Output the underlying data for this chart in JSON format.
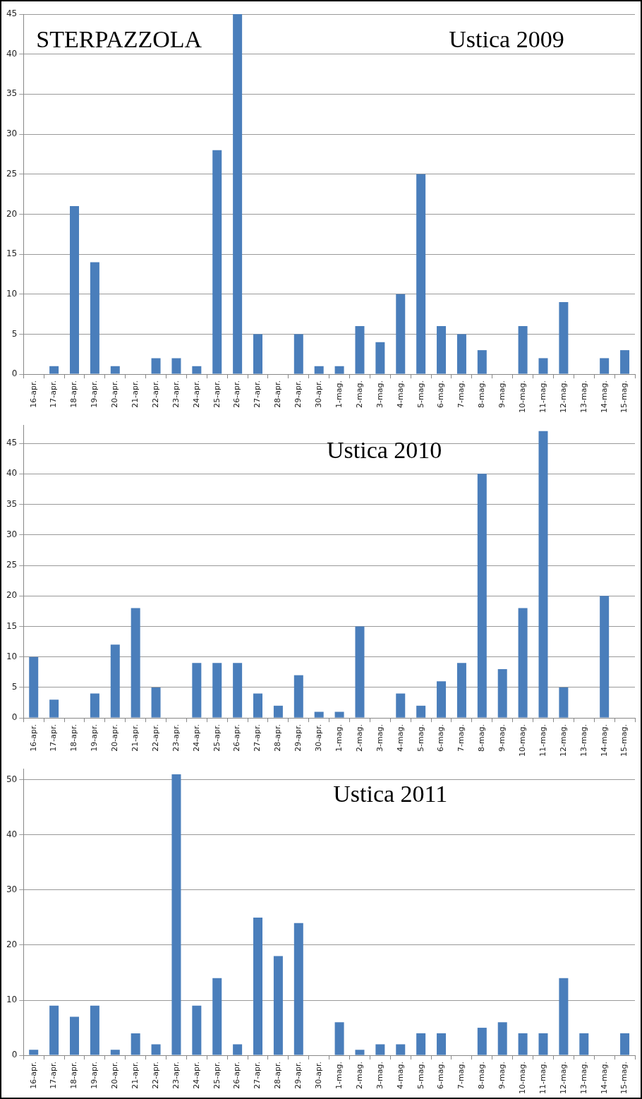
{
  "chart_data": [
    {
      "type": "bar",
      "title": "Ustica 2009",
      "annotations": [
        "STERPAZZOLA"
      ],
      "categories": [
        "16-apr.",
        "17-apr.",
        "18-apr.",
        "19-apr.",
        "20-apr.",
        "21-apr.",
        "22-apr.",
        "23-apr.",
        "24-apr.",
        "25-apr.",
        "26-apr.",
        "27-apr.",
        "28-apr.",
        "29-apr.",
        "30-apr.",
        "1-mag.",
        "2-mag.",
        "3-mag.",
        "4-mag.",
        "5-mag.",
        "6-mag.",
        "7-mag.",
        "8-mag.",
        "9-mag.",
        "10-mag.",
        "11-mag.",
        "12-mag.",
        "13-mag.",
        "14-mag.",
        "15-mag."
      ],
      "values": [
        0,
        1,
        21,
        14,
        1,
        0,
        2,
        2,
        1,
        28,
        45,
        5,
        0,
        5,
        1,
        1,
        6,
        4,
        10,
        25,
        6,
        5,
        3,
        0,
        6,
        2,
        9,
        0,
        2,
        3
      ],
      "color": "#4a7ebb",
      "ylim": [
        0,
        45
      ],
      "yticks": [
        0,
        5,
        10,
        15,
        20,
        25,
        30,
        35,
        40,
        45
      ],
      "grid": "y",
      "legend": false
    },
    {
      "type": "bar",
      "title": "Ustica 2010",
      "categories": [
        "16-apr.",
        "17-apr.",
        "18-apr.",
        "19-apr.",
        "20-apr.",
        "21-apr.",
        "22-apr.",
        "23-apr.",
        "24-apr.",
        "25-apr.",
        "26-apr.",
        "27-apr.",
        "28-apr.",
        "29-apr.",
        "30-apr.",
        "1-mag.",
        "2-mag.",
        "3-mag.",
        "4-mag.",
        "5-mag.",
        "6-mag.",
        "7-mag.",
        "8-mag.",
        "9-mag.",
        "10-mag.",
        "11-mag.",
        "12-mag.",
        "13-mag.",
        "14-mag.",
        "15-mag."
      ],
      "values": [
        10,
        3,
        0,
        4,
        12,
        18,
        5,
        0,
        9,
        9,
        9,
        4,
        2,
        7,
        1,
        1,
        15,
        0,
        4,
        2,
        6,
        9,
        40,
        8,
        18,
        47,
        5,
        0,
        20,
        0
      ],
      "color": "#4a7ebb",
      "ylim": [
        0,
        48
      ],
      "yticks": [
        0,
        5,
        10,
        15,
        20,
        25,
        30,
        35,
        40,
        45
      ],
      "grid": "y",
      "legend": false
    },
    {
      "type": "bar",
      "title": "Ustica 2011",
      "categories": [
        "16-apr.",
        "17-apr.",
        "18-apr.",
        "19-apr.",
        "20-apr.",
        "21-apr.",
        "22-apr.",
        "23-apr.",
        "24-apr.",
        "25-apr.",
        "26-apr.",
        "27-apr.",
        "28-apr.",
        "29-apr.",
        "30-apr.",
        "1-mag.",
        "2-mag.",
        "3-mag.",
        "4-mag.",
        "5-mag.",
        "6-mag.",
        "7-mag.",
        "8-mag.",
        "9-mag.",
        "10-mag.",
        "11-mag.",
        "12-mag.",
        "13-mag.",
        "14-mag.",
        "15-mag."
      ],
      "values": [
        1,
        9,
        7,
        9,
        1,
        4,
        2,
        51,
        9,
        14,
        2,
        25,
        18,
        24,
        0,
        6,
        1,
        2,
        2,
        4,
        4,
        0,
        5,
        6,
        4,
        4,
        14,
        4,
        0,
        4
      ],
      "color": "#4a7ebb",
      "ylim": [
        0,
        52
      ],
      "yticks": [
        0,
        10,
        20,
        30,
        40,
        50
      ],
      "grid": "y",
      "legend": false
    }
  ]
}
